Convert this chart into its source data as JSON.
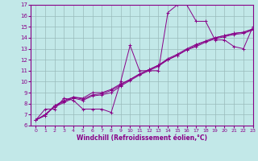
{
  "title": "",
  "xlabel": "Windchill (Refroidissement éolien,°C)",
  "background_color": "#c2e8e8",
  "line_color": "#880088",
  "grid_color": "#99bbbb",
  "x_values": [
    0,
    1,
    2,
    3,
    4,
    5,
    6,
    7,
    8,
    9,
    10,
    11,
    12,
    13,
    14,
    15,
    16,
    17,
    18,
    19,
    20,
    21,
    22,
    23
  ],
  "lines": [
    [
      6.5,
      7.5,
      7.5,
      8.5,
      8.3,
      7.5,
      7.5,
      7.5,
      7.2,
      10.0,
      13.3,
      11.0,
      11.0,
      11.0,
      16.3,
      17.0,
      17.0,
      15.5,
      15.5,
      13.8,
      13.8,
      13.2,
      13.0,
      15.0
    ],
    [
      6.5,
      6.9,
      7.8,
      8.3,
      8.6,
      8.5,
      9.0,
      9.0,
      9.3,
      9.8,
      10.2,
      10.7,
      11.1,
      11.5,
      12.0,
      12.4,
      12.9,
      13.3,
      13.7,
      14.0,
      14.2,
      14.4,
      14.5,
      14.8
    ],
    [
      6.5,
      7.0,
      7.8,
      8.2,
      8.6,
      8.4,
      8.8,
      8.9,
      9.2,
      9.7,
      10.2,
      10.7,
      11.1,
      11.5,
      12.1,
      12.5,
      13.0,
      13.4,
      13.7,
      14.0,
      14.2,
      14.4,
      14.5,
      14.8
    ],
    [
      6.5,
      7.0,
      7.7,
      8.1,
      8.5,
      8.3,
      8.7,
      8.8,
      9.0,
      9.6,
      10.1,
      10.6,
      11.0,
      11.4,
      12.0,
      12.4,
      12.9,
      13.2,
      13.6,
      13.9,
      14.1,
      14.3,
      14.4,
      14.7
    ]
  ],
  "ylim": [
    6,
    17
  ],
  "xlim": [
    -0.5,
    23
  ],
  "yticks": [
    6,
    7,
    8,
    9,
    10,
    11,
    12,
    13,
    14,
    15,
    16,
    17
  ],
  "xticks": [
    0,
    1,
    2,
    3,
    4,
    5,
    6,
    7,
    8,
    9,
    10,
    11,
    12,
    13,
    14,
    15,
    16,
    17,
    18,
    19,
    20,
    21,
    22,
    23
  ]
}
